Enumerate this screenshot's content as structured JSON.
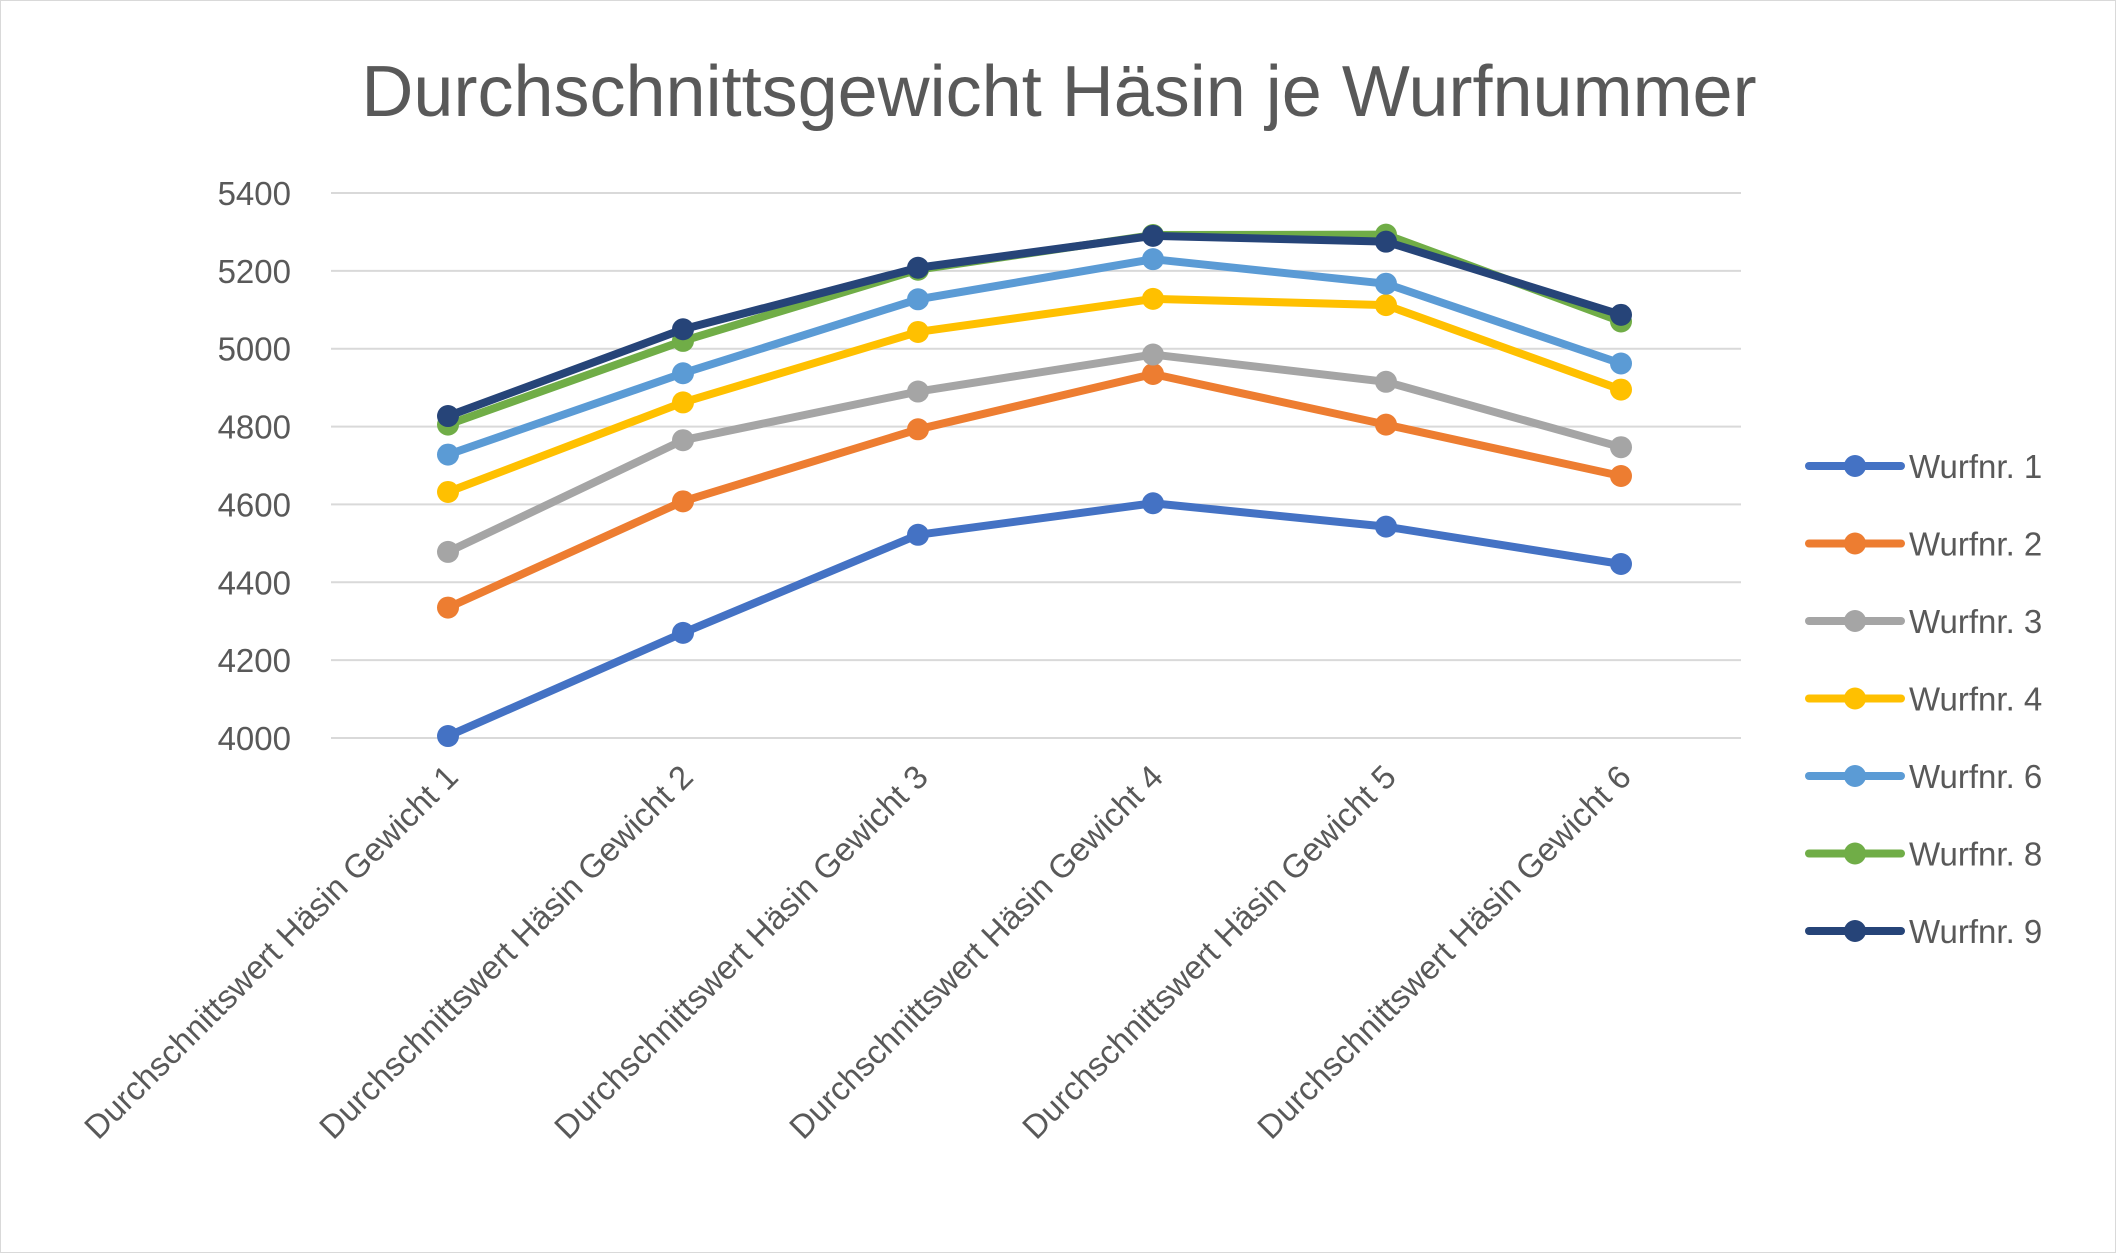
{
  "chart_data": {
    "type": "line",
    "title": "Durchschnittsgewicht Häsin je Wurfnummer",
    "xlabel": "",
    "ylabel": "",
    "ylim": [
      4000,
      5400
    ],
    "yticks": [
      4000,
      4200,
      4400,
      4600,
      4800,
      5000,
      5200,
      5400
    ],
    "grid": true,
    "legend_position": "right",
    "categories": [
      "Durchschnittswert Häsin Gewicht  1",
      "Durchschnittswert Häsin Gewicht  2",
      "Durchschnittswert Häsin Gewicht  3",
      "Durchschnittswert Häsin Gewicht  4",
      "Durchschnittswert Häsin Gewicht 5",
      "Durchschnittswert Häsin Gewicht 6"
    ],
    "series": [
      {
        "name": "Wurfnr. 1",
        "color": "#4472c4",
        "values": [
          4005,
          4270,
          4522,
          4603,
          4543,
          4447
        ]
      },
      {
        "name": "Wurfnr. 2",
        "color": "#ed7d31",
        "values": [
          4335,
          4608,
          4793,
          4935,
          4805,
          4673
        ]
      },
      {
        "name": "Wurfnr. 3",
        "color": "#a5a5a5",
        "values": [
          4478,
          4765,
          4890,
          4985,
          4915,
          4747
        ]
      },
      {
        "name": "Wurfnr. 4",
        "color": "#ffc000",
        "values": [
          4632,
          4862,
          5043,
          5128,
          5112,
          4895
        ]
      },
      {
        "name": "Wurfnr. 6",
        "color": "#5b9bd5",
        "values": [
          4728,
          4937,
          5127,
          5230,
          5167,
          4962
        ]
      },
      {
        "name": "Wurfnr. 8",
        "color": "#70ad47",
        "values": [
          4805,
          5020,
          5203,
          5292,
          5293,
          5070
        ]
      },
      {
        "name": "Wurfnr. 9",
        "color": "#264478",
        "values": [
          4827,
          5050,
          5208,
          5290,
          5275,
          5087
        ]
      }
    ]
  }
}
